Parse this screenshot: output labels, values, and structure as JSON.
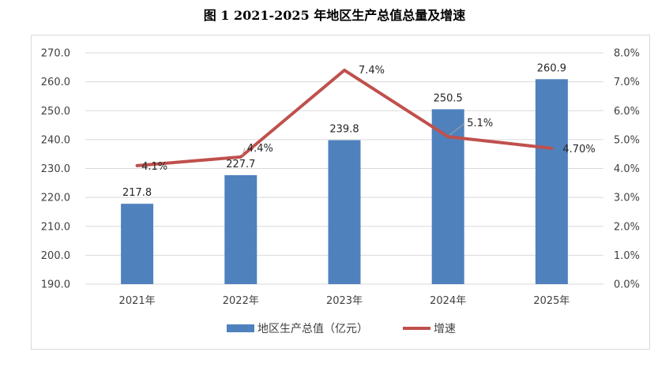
{
  "title": "图 1 2021-2025 年地区生产总值总量及增速",
  "colors": {
    "bar": "#4f81bd",
    "line": "#c0504d",
    "grid": "#d9d9d9",
    "text": "#404040"
  },
  "chart_data": {
    "type": "bar",
    "categories": [
      "2021年",
      "2022年",
      "2023年",
      "2024年",
      "2025年"
    ],
    "series": [
      {
        "name": "地区生产总值（亿元）",
        "type": "bar",
        "axis": "left",
        "values": [
          217.8,
          227.7,
          239.8,
          250.5,
          260.9
        ],
        "labels": [
          "217.8",
          "227.7",
          "239.8",
          "250.5",
          "260.9"
        ]
      },
      {
        "name": "增速",
        "type": "line",
        "axis": "right",
        "values": [
          4.1,
          4.4,
          7.4,
          5.1,
          4.7
        ],
        "labels": [
          "4.1%",
          "4.4%",
          "7.4%",
          "5.1%",
          "4.70%"
        ]
      }
    ],
    "y_left": {
      "min": 190,
      "max": 270,
      "step": 10,
      "ticks": [
        "190.0",
        "200.0",
        "210.0",
        "220.0",
        "230.0",
        "240.0",
        "250.0",
        "260.0",
        "270.0"
      ]
    },
    "y_right": {
      "min": 0,
      "max": 8,
      "step": 1,
      "ticks": [
        "0.0%",
        "1.0%",
        "2.0%",
        "3.0%",
        "4.0%",
        "5.0%",
        "6.0%",
        "7.0%",
        "8.0%"
      ]
    },
    "grid": true,
    "legend": "bottom"
  }
}
